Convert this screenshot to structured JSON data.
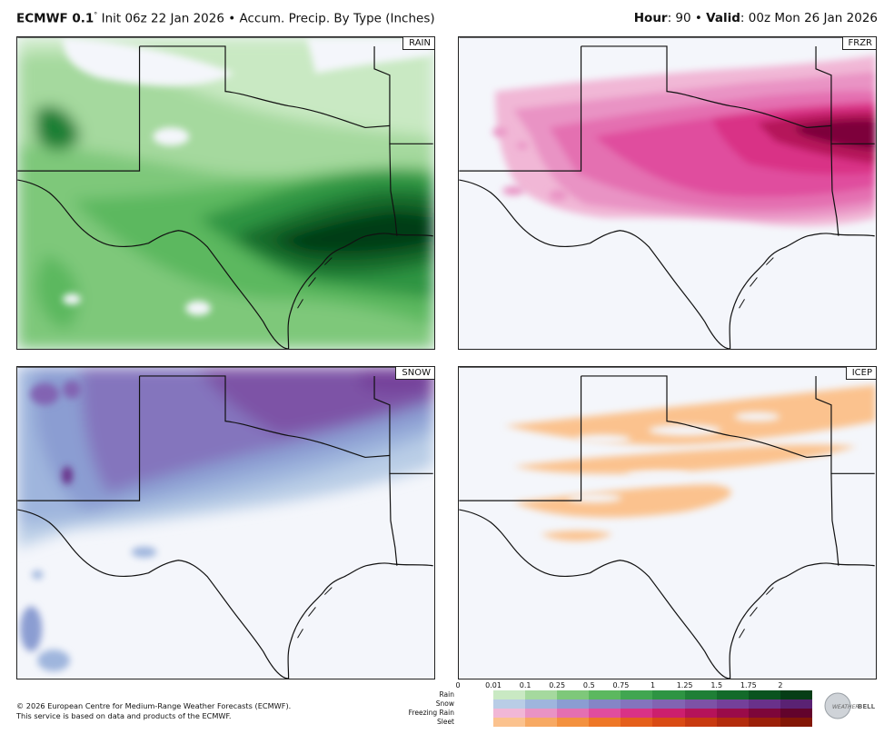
{
  "header": {
    "model": "ECMWF 0.1",
    "degree": "°",
    "init": " Init 06z 22 Jan 2026 • Accum. Precip. By Type (Inches)",
    "hour_label": "Hour",
    "hour_value": ": 90 • ",
    "valid_label": "Valid",
    "valid_value": ": 00z Mon 26 Jan 2026"
  },
  "panels": {
    "rain": "RAIN",
    "frzr": "FRZR",
    "snow": "SNOW",
    "icep": "ICEP"
  },
  "colorbar": {
    "ticks": [
      "0",
      "0.01",
      "0.1",
      "0.25",
      "0.5",
      "0.75",
      "1",
      "1.25",
      "1.5",
      "1.75",
      "2"
    ],
    "rows": [
      "Rain",
      "Snow",
      "Freezing Rain",
      "Sleet"
    ],
    "colors": {
      "rain": [
        "#c9e9c3",
        "#a5d99e",
        "#7ec87a",
        "#5cb85f",
        "#41a651",
        "#2e9443",
        "#1f7f36",
        "#136a2a",
        "#0a531f",
        "#063d16"
      ],
      "snow": [
        "#b9cde6",
        "#9fb5dd",
        "#8b9dd2",
        "#8585c6",
        "#8474bd",
        "#8264b2",
        "#7d52a6",
        "#74409a",
        "#69318a",
        "#5a2273"
      ],
      "frzr": [
        "#f1b7d6",
        "#e993c4",
        "#e46fb1",
        "#e04d9e",
        "#d93286",
        "#cc1f6e",
        "#b5135a",
        "#9a0b49",
        "#7d063a",
        "#62032c"
      ],
      "icep": [
        "#fbc28e",
        "#f7a963",
        "#f3913f",
        "#ee7727",
        "#e55f1b",
        "#d94b14",
        "#c83a10",
        "#b32c0c",
        "#9b2009",
        "#831706"
      ]
    }
  },
  "footer": {
    "line1": "© 2026 European Centre for Medium-Range Weather Forecasts (ECMWF).",
    "line2": "This service is based on data and products of the ECMWF."
  },
  "logo": {
    "left": "WEATHER",
    "right": "BELL"
  }
}
